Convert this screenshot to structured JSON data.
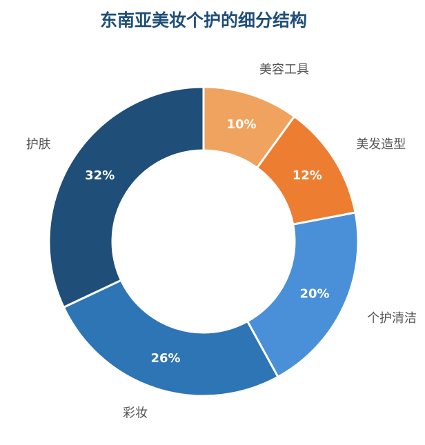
{
  "chart_data": {
    "type": "pie",
    "title": "东南亚美妆个护的细分结构",
    "style": "donut",
    "categories": [
      "美容工具",
      "美发造型",
      "个护清洁",
      "彩妆",
      "护肤"
    ],
    "values": [
      10,
      12,
      20,
      26,
      32
    ],
    "value_labels": [
      "10%",
      "12%",
      "20%",
      "26%",
      "32%"
    ],
    "colors": [
      "#f0a35e",
      "#ed7d31",
      "#4a90d9",
      "#2e75b6",
      "#1f4e79"
    ],
    "legend": "none",
    "label_placement": "outside"
  }
}
